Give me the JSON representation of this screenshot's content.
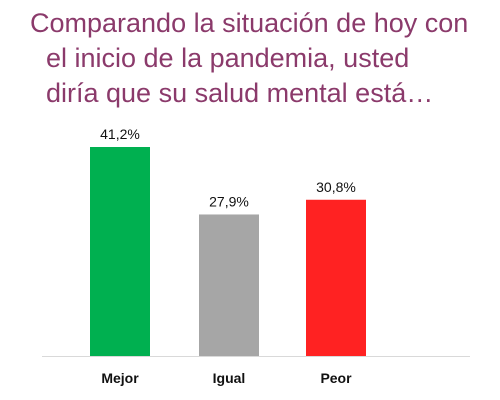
{
  "title_lines": [
    "Comparando la situación de hoy con",
    "el inicio de la pandemia, usted",
    "diría que su salud mental está…"
  ],
  "chart_data": {
    "type": "bar",
    "title": "Comparando la situación de hoy con el inicio de la pandemia, usted diría que su salud mental está…",
    "categories": [
      "Mejor",
      "Igual",
      "Peor"
    ],
    "values": [
      41.2,
      27.9,
      30.8
    ],
    "value_labels": [
      "41,2%",
      "27,9%",
      "30,8%"
    ],
    "colors": [
      "#00B050",
      "#A6A6A6",
      "#FF2222"
    ],
    "xlabel": "",
    "ylabel": "",
    "ylim": [
      0,
      41.2
    ],
    "grid": false,
    "legend": "none"
  },
  "colors": {
    "title": "#8B3A6B",
    "axis": "#d9d9d9"
  }
}
